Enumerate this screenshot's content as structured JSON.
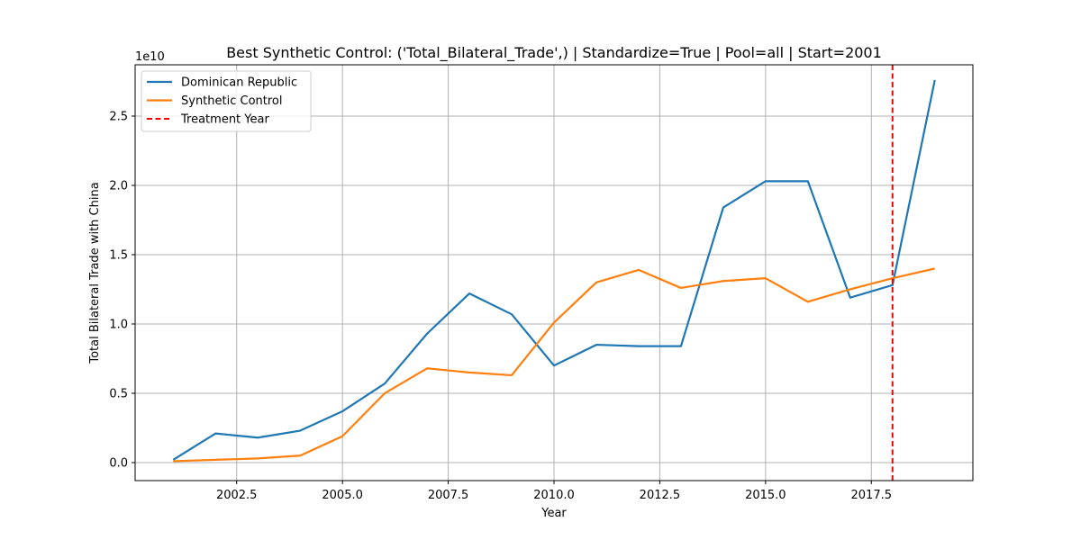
{
  "chart_data": {
    "type": "line",
    "title": "Best Synthetic Control: ('Total_Bilateral_Trade',) | Standardize=True | Pool=all | Start=2001",
    "xlabel": "Year",
    "ylabel": "Total Bilateral Trade with China",
    "y_scale_label": "1e10",
    "x_ticks": [
      "2002.5",
      "2005.0",
      "2007.5",
      "2010.0",
      "2012.5",
      "2015.0",
      "2017.5"
    ],
    "y_ticks": [
      "0.0",
      "0.5",
      "1.0",
      "1.5",
      "2.0",
      "2.5"
    ],
    "xlim": [
      2000.1,
      2019.9
    ],
    "ylim": [
      -0.13,
      2.87
    ],
    "x_tick_values": [
      2002.5,
      2005.0,
      2007.5,
      2010.0,
      2012.5,
      2015.0,
      2017.5
    ],
    "y_tick_values": [
      0.0,
      0.5,
      1.0,
      1.5,
      2.0,
      2.5
    ],
    "grid": true,
    "legend_position": "top-left",
    "x": [
      2001,
      2002,
      2003,
      2004,
      2005,
      2006,
      2007,
      2008,
      2009,
      2010,
      2011,
      2012,
      2013,
      2014,
      2015,
      2016,
      2017,
      2018,
      2019
    ],
    "series": [
      {
        "name": "Dominican Republic",
        "color": "#1f77b4",
        "values": [
          0.02,
          0.21,
          0.18,
          0.23,
          0.37,
          0.57,
          0.93,
          1.22,
          1.07,
          0.7,
          0.85,
          0.84,
          0.84,
          1.84,
          2.03,
          2.03,
          1.19,
          1.28,
          2.76
        ]
      },
      {
        "name": "Synthetic Control",
        "color": "#ff7f0e",
        "values": [
          0.01,
          0.02,
          0.03,
          0.05,
          0.19,
          0.5,
          0.68,
          0.65,
          0.63,
          1.01,
          1.3,
          1.39,
          1.26,
          1.31,
          1.33,
          1.16,
          1.25,
          1.33,
          1.4
        ]
      }
    ],
    "vline": {
      "name": "Treatment Year",
      "x": 2018,
      "color": "#ff0000"
    }
  }
}
